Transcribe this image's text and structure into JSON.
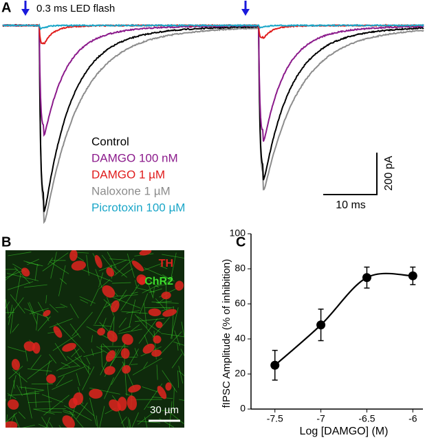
{
  "panel_a": {
    "label": "A",
    "stimulus": "0.3 ms LED flash",
    "series": [
      {
        "name": "Control",
        "color": "#000000"
      },
      {
        "name": "DAMGO 100 nM",
        "color": "#8b1a8b"
      },
      {
        "name": "DAMGO 1 µM",
        "color": "#e01b1b"
      },
      {
        "name": "Naloxone 1 µM",
        "color": "#8c8c8c"
      },
      {
        "name": "Picrotoxin 100 µM",
        "color": "#1aa6c8"
      }
    ],
    "scale_y": "200 pA",
    "scale_x": "10 ms"
  },
  "panel_b": {
    "label": "B",
    "stains": [
      {
        "name": "TH",
        "color": "#e0231e"
      },
      {
        "name": "ChR2",
        "color": "#3cdc2c"
      }
    ],
    "scale": "30 µm"
  },
  "chart_data": {
    "type": "scatter",
    "label": "C",
    "x": [
      -7.5,
      -7,
      -6.5,
      -6
    ],
    "values": [
      25,
      48,
      75,
      76
    ],
    "errors": [
      8.5,
      9,
      6,
      5
    ],
    "color": "#000000",
    "xlim": [
      -7.76,
      -5.89
    ],
    "ylim": [
      0,
      100
    ],
    "xticks": [
      -7.5,
      -7,
      -6.5,
      -6
    ],
    "yticks": [
      0,
      20,
      40,
      60,
      80,
      100
    ],
    "x_label": "Log [DAMGO] (M)",
    "y_label": "fIPSC Amplitude (% of inhibition)"
  }
}
